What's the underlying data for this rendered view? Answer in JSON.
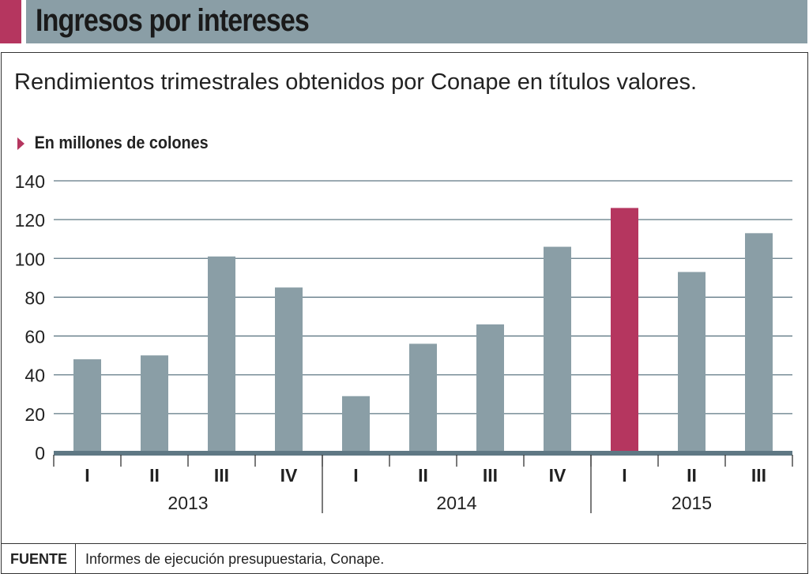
{
  "colors": {
    "bar": "#8a9ea6",
    "highlight": "#b5365f",
    "axis": "#5f7884",
    "grid": "#5f7884"
  },
  "chart_data": {
    "type": "bar",
    "title": "Ingresos por intereses",
    "subtitle": "Rendimientos trimestrales obtenidos por Conape en títulos valores.",
    "ylabel": "En millones de colones",
    "xlabel": "",
    "ylim": [
      0,
      140
    ],
    "yticks": [
      "0",
      "20",
      "40",
      "60",
      "80",
      "100",
      "120",
      "140"
    ],
    "grid": true,
    "groups": [
      {
        "label": "2013",
        "count": 4
      },
      {
        "label": "2014",
        "count": 4
      },
      {
        "label": "2015",
        "count": 3
      }
    ],
    "categories": [
      "I",
      "II",
      "III",
      "IV",
      "I",
      "II",
      "III",
      "IV",
      "I",
      "II",
      "III"
    ],
    "values": [
      48,
      50,
      101,
      85,
      29,
      56,
      66,
      106,
      126,
      93,
      113
    ],
    "highlight_index": 8
  },
  "footer": {
    "label": "FUENTE",
    "source": "Informes de ejecución presupuestaria, Conape."
  }
}
